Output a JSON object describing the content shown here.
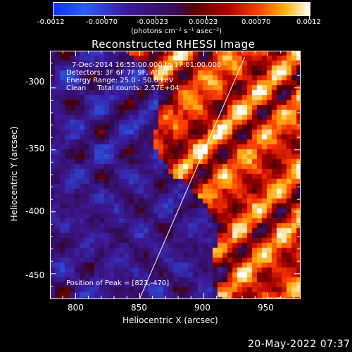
{
  "colorbar": {
    "ticks": [
      "-0.0012",
      "-0.00070",
      "-0.00023",
      "0.00023",
      "0.00070",
      "0.0012"
    ],
    "units": "(photons cm⁻² s⁻¹ asec⁻²)",
    "range": [
      -0.0012,
      0.0012
    ]
  },
  "chart_data": {
    "type": "heatmap",
    "title": "Reconstructed RHESSI Image",
    "xlabel": "Heliocentric X (arcsec)",
    "ylabel": "Heliocentric Y (arcsec)",
    "xlim": [
      780,
      975
    ],
    "ylim": [
      -470,
      -270
    ],
    "xticks": [
      "800",
      "850",
      "900",
      "950"
    ],
    "yticks": [
      "-300",
      "-350",
      "-400",
      "-450"
    ],
    "limb_line": {
      "x": [
        850,
        932
      ],
      "y": [
        -470,
        -275
      ]
    },
    "annotations": [
      "7-Dec-2014 16:55:00.000 to 17:01:00.000",
      "Detectors: 3F 6F 7F 9F, Att 0",
      "Energy Range: 25.0 - 50.0 keV",
      "Clean     Total counts: 2.57E+04",
      "Position of Peak = [823,-470]"
    ]
  },
  "timestamp": "20-May-2022 07:37"
}
